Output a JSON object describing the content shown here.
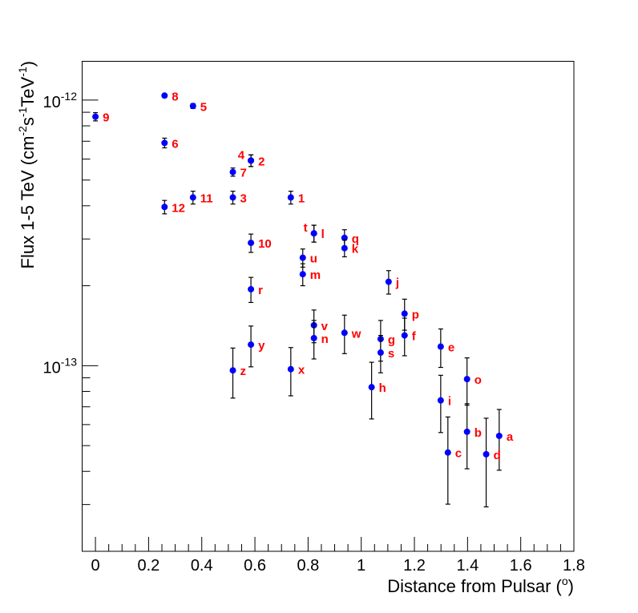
{
  "chart_data": {
    "type": "scatter",
    "title": "",
    "xlabel": "Distance from Pulsar (",
    "xlabel_sup": "o",
    "xlabel_end": ")",
    "ylabel": "Flux 1-5 TeV (cm",
    "ylabel_parts": [
      "Flux 1-5 TeV (cm",
      "-2",
      "s",
      "-1",
      "TeV",
      "-1",
      ")"
    ],
    "xlim": [
      -0.05,
      1.8
    ],
    "ylim": [
      2e-14,
      1.4e-12
    ],
    "yscale": "log",
    "grid": false,
    "x_ticks": [
      "0",
      "0.2",
      "0.4",
      "0.6",
      "0.8",
      "1",
      "1.2",
      "1.4",
      "1.6",
      "1.8"
    ],
    "y_ticks": [
      {
        "base": "10",
        "exp": "-12"
      },
      {
        "base": "10",
        "exp": "-13"
      }
    ],
    "marker_color": "#0000ff",
    "label_color": "#ff0000",
    "points": [
      {
        "label": "9",
        "x": 0.0,
        "y": 8.66e-13,
        "yerr": 3.1e-14
      },
      {
        "label": "8",
        "x": 0.26,
        "y": 1.04e-12,
        "yerr": 1.4e-14
      },
      {
        "label": "5",
        "x": 0.367,
        "y": 9.5e-13,
        "yerr": 2e-14
      },
      {
        "label": "6",
        "x": 0.26,
        "y": 6.9e-13,
        "yerr": 2.9e-14
      },
      {
        "label": "4",
        "x": 0.585,
        "y": 5.92e-13,
        "yerr": 3e-14
      },
      {
        "label": "2",
        "x": 0.585,
        "y": 5.92e-13,
        "yerr": 3e-14
      },
      {
        "label": "7",
        "x": 0.517,
        "y": 5.36e-13,
        "yerr": 1.9e-14
      },
      {
        "label": "3",
        "x": 0.517,
        "y": 4.3e-13,
        "yerr": 2.4e-14
      },
      {
        "label": "11",
        "x": 0.367,
        "y": 4.3e-13,
        "yerr": 2.4e-14
      },
      {
        "label": "12",
        "x": 0.26,
        "y": 3.96e-13,
        "yerr": 2.3e-14
      },
      {
        "label": "1",
        "x": 0.735,
        "y": 4.3e-13,
        "yerr": 2.4e-14
      },
      {
        "label": "10",
        "x": 0.585,
        "y": 2.9e-13,
        "yerr": 2.3e-14
      },
      {
        "label": "t",
        "x": 0.822,
        "y": 3.15e-13,
        "yerr": 2.3e-14
      },
      {
        "label": "l",
        "x": 0.822,
        "y": 3.15e-13,
        "yerr": 2.3e-14
      },
      {
        "label": "q",
        "x": 0.937,
        "y": 3.03e-13,
        "yerr": 2.2e-14
      },
      {
        "label": "k",
        "x": 0.937,
        "y": 2.77e-13,
        "yerr": 2e-14
      },
      {
        "label": "u",
        "x": 0.78,
        "y": 2.55e-13,
        "yerr": 2e-14
      },
      {
        "label": "m",
        "x": 0.78,
        "y": 2.21e-13,
        "yerr": 2.1e-14
      },
      {
        "label": "j",
        "x": 1.103,
        "y": 2.07e-13,
        "yerr": 2.1e-14
      },
      {
        "label": "r",
        "x": 0.585,
        "y": 1.94e-13,
        "yerr": 2.1e-14
      },
      {
        "label": "p",
        "x": 1.163,
        "y": 1.57e-13,
        "yerr": 2.1e-14
      },
      {
        "label": "f",
        "x": 1.163,
        "y": 1.3e-13,
        "yerr": 2.1e-14
      },
      {
        "label": "v",
        "x": 0.822,
        "y": 1.42e-13,
        "yerr": 2e-14
      },
      {
        "label": "n",
        "x": 0.822,
        "y": 1.27e-13,
        "yerr": 2.1e-14
      },
      {
        "label": "w",
        "x": 0.937,
        "y": 1.33e-13,
        "yerr": 2.2e-14
      },
      {
        "label": "g",
        "x": 1.073,
        "y": 1.26e-13,
        "yerr": 2.2e-14
      },
      {
        "label": "s",
        "x": 1.073,
        "y": 1.12e-13,
        "yerr": 1.8e-14
      },
      {
        "label": "y",
        "x": 0.585,
        "y": 1.2e-13,
        "yerr": 2.1e-14
      },
      {
        "label": "e",
        "x": 1.299,
        "y": 1.18e-13,
        "yerr": 1.95e-14
      },
      {
        "label": "z",
        "x": 0.517,
        "y": 9.6e-14,
        "yerr": 2.05e-14
      },
      {
        "label": "x",
        "x": 0.735,
        "y": 9.7e-14,
        "yerr": 2e-14
      },
      {
        "label": "o",
        "x": 1.398,
        "y": 8.9e-14,
        "yerr": 1.8e-14
      },
      {
        "label": "h",
        "x": 1.039,
        "y": 8.3e-14,
        "yerr": 2e-14
      },
      {
        "label": "i",
        "x": 1.299,
        "y": 7.4e-14,
        "yerr": 1.8e-14
      },
      {
        "label": "b",
        "x": 1.398,
        "y": 5.64e-14,
        "yerr": 1.55e-14
      },
      {
        "label": "a",
        "x": 1.519,
        "y": 5.44e-14,
        "yerr": 1.4e-14
      },
      {
        "label": "c",
        "x": 1.326,
        "y": 4.71e-14,
        "yerr": 1.7e-14
      },
      {
        "label": "d",
        "x": 1.47,
        "y": 4.64e-14,
        "yerr": 1.7e-14
      }
    ]
  }
}
